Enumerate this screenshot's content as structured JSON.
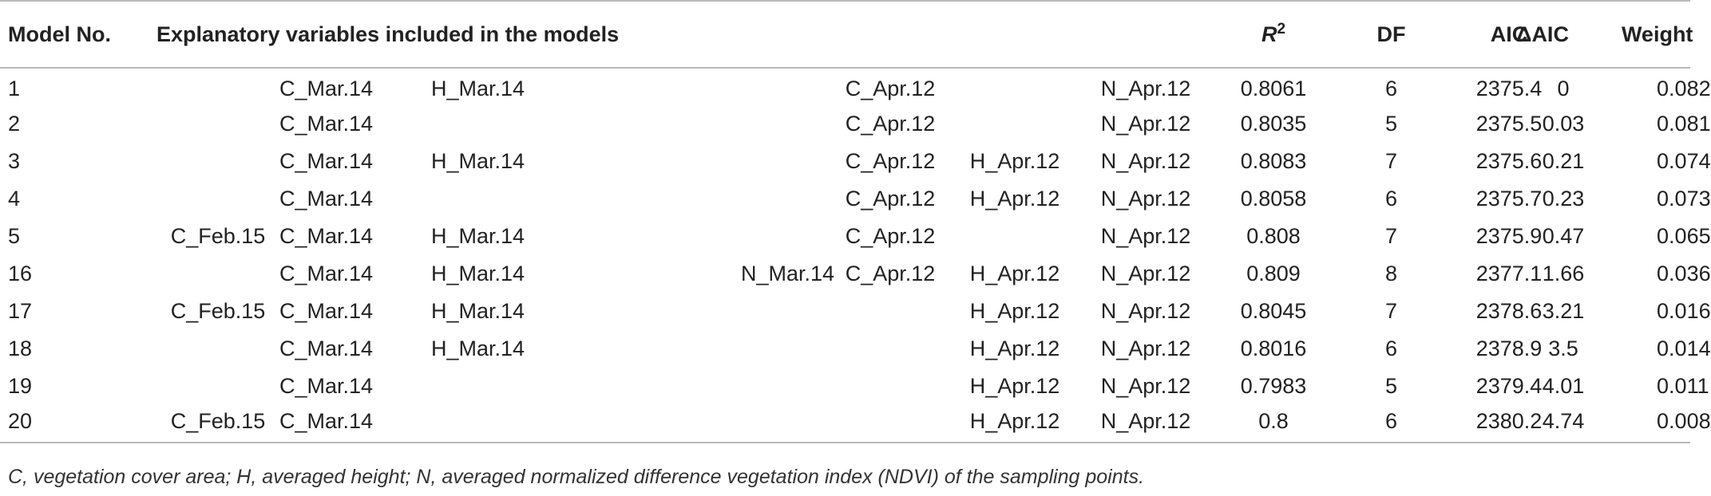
{
  "table": {
    "headers": {
      "model_no": "Model No.",
      "explanatory": "Explanatory variables included in the models",
      "r2_base": "R",
      "r2_sup": "2",
      "df": "DF",
      "aic": "AIC",
      "delta_aic": "ΔAIC",
      "weight": "Weight"
    },
    "rows": [
      {
        "model": "1",
        "v1": "",
        "v2": "C_Mar.14",
        "v3": "H_Mar.14",
        "v4": "",
        "v5": "C_Apr.12",
        "v6": "",
        "v7": "N_Apr.12",
        "r2": "0.8061",
        "df": "6",
        "aic": "2375.4",
        "daic": "0",
        "weight": "0.082"
      },
      {
        "model": "2",
        "v1": "",
        "v2": "C_Mar.14",
        "v3": "",
        "v4": "",
        "v5": "C_Apr.12",
        "v6": "",
        "v7": "N_Apr.12",
        "r2": "0.8035",
        "df": "5",
        "aic": "2375.5",
        "daic": "0.03",
        "weight": "0.081"
      },
      {
        "model": "3",
        "v1": "",
        "v2": "C_Mar.14",
        "v3": "H_Mar.14",
        "v4": "",
        "v5": "C_Apr.12",
        "v6": "H_Apr.12",
        "v7": "N_Apr.12",
        "r2": "0.8083",
        "df": "7",
        "aic": "2375.6",
        "daic": "0.21",
        "weight": "0.074"
      },
      {
        "model": "4",
        "v1": "",
        "v2": "C_Mar.14",
        "v3": "",
        "v4": "",
        "v5": "C_Apr.12",
        "v6": "H_Apr.12",
        "v7": "N_Apr.12",
        "r2": "0.8058",
        "df": "6",
        "aic": "2375.7",
        "daic": "0.23",
        "weight": "0.073"
      },
      {
        "model": "5",
        "v1": "C_Feb.15",
        "v2": "C_Mar.14",
        "v3": "H_Mar.14",
        "v4": "",
        "v5": "C_Apr.12",
        "v6": "",
        "v7": "N_Apr.12",
        "r2": "0.808",
        "df": "7",
        "aic": "2375.9",
        "daic": "0.47",
        "weight": "0.065"
      },
      {
        "model": "16",
        "v1": "",
        "v2": "C_Mar.14",
        "v3": "H_Mar.14",
        "v4": "N_Mar.14",
        "v5": "C_Apr.12",
        "v6": "H_Apr.12",
        "v7": "N_Apr.12",
        "r2": "0.809",
        "df": "8",
        "aic": "2377.1",
        "daic": "1.66",
        "weight": "0.036"
      },
      {
        "model": "17",
        "v1": "C_Feb.15",
        "v2": "C_Mar.14",
        "v3": "H_Mar.14",
        "v4": "",
        "v5": "",
        "v6": "H_Apr.12",
        "v7": "N_Apr.12",
        "r2": "0.8045",
        "df": "7",
        "aic": "2378.6",
        "daic": "3.21",
        "weight": "0.016"
      },
      {
        "model": "18",
        "v1": "",
        "v2": "C_Mar.14",
        "v3": "H_Mar.14",
        "v4": "",
        "v5": "",
        "v6": "H_Apr.12",
        "v7": "N_Apr.12",
        "r2": "0.8016",
        "df": "6",
        "aic": "2378.9",
        "daic": "3.5",
        "weight": "0.014"
      },
      {
        "model": "19",
        "v1": "",
        "v2": "C_Mar.14",
        "v3": "",
        "v4": "",
        "v5": "",
        "v6": "H_Apr.12",
        "v7": "N_Apr.12",
        "r2": "0.7983",
        "df": "5",
        "aic": "2379.4",
        "daic": "4.01",
        "weight": "0.011"
      },
      {
        "model": "20",
        "v1": "C_Feb.15",
        "v2": "C_Mar.14",
        "v3": "",
        "v4": "",
        "v5": "",
        "v6": "H_Apr.12",
        "v7": "N_Apr.12",
        "r2": "0.8",
        "df": "6",
        "aic": "2380.2",
        "daic": "4.74",
        "weight": "0.008"
      }
    ]
  },
  "footnote": "C, vegetation cover area; H, averaged height; N, averaged normalized difference vegetation index (NDVI) of the sampling points."
}
